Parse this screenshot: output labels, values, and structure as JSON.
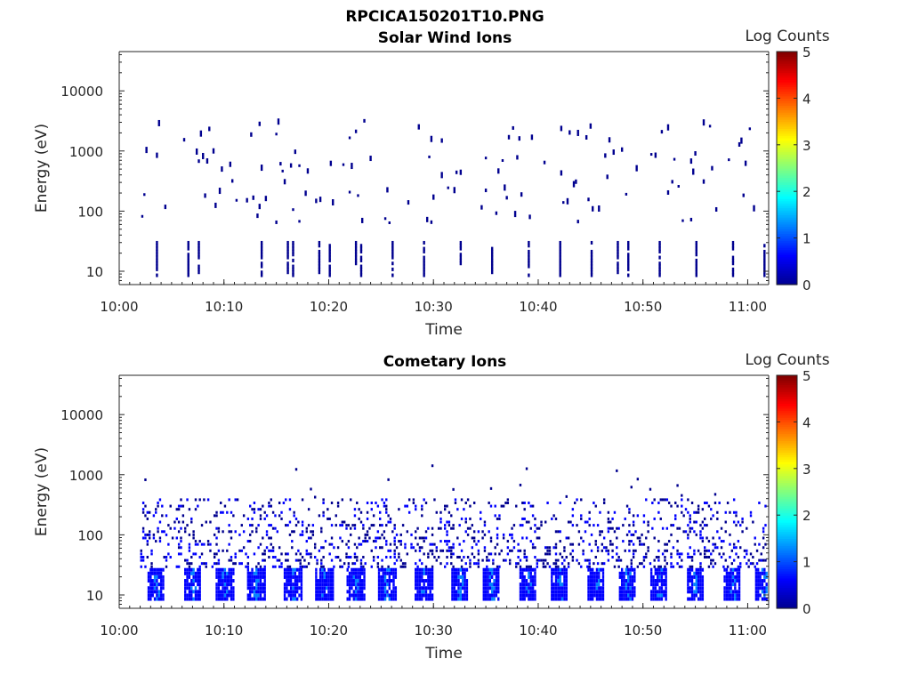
{
  "figure_title": "RPCICA150201T10.PNG",
  "colorbar_label": "Log Counts",
  "colormap": [
    "#00008f",
    "#0000ff",
    "#0080ff",
    "#00ffff",
    "#80ff80",
    "#ffff00",
    "#ff8000",
    "#ff0000",
    "#800000"
  ],
  "chart_data": [
    {
      "type": "heatmap",
      "title": "Solar Wind Ions",
      "xlabel": "Time",
      "ylabel": "Energy (eV)",
      "x_ticks": [
        "10:00",
        "10:10",
        "10:20",
        "10:30",
        "10:40",
        "10:50",
        "11:00"
      ],
      "xlim": [
        "10:00",
        "11:02"
      ],
      "y_scale": "log",
      "y_ticks": [
        "10",
        "100",
        "1000",
        "10000"
      ],
      "ylim": [
        6,
        45000
      ],
      "colorbar": {
        "label": "Log Counts",
        "range": [
          0,
          5
        ],
        "ticks": [
          "0",
          "1",
          "2",
          "3",
          "4",
          "5"
        ]
      },
      "energy_bands_eV": [
        {
          "band": "high",
          "min": 500,
          "max": 3000,
          "log_counts": 0.2
        },
        {
          "band": "mid",
          "min": 60,
          "max": 500,
          "log_counts": 0.2
        },
        {
          "band": "low",
          "min": 8,
          "max": 28,
          "log_counts": 0.3
        }
      ],
      "low_energy_burst_times": [
        "10:03.5",
        "10:06.5",
        "10:07.5",
        "10:13.5",
        "10:16",
        "10:16.5",
        "10:19",
        "10:20",
        "10:22.5",
        "10:23",
        "10:26",
        "10:29",
        "10:32.5",
        "10:35.5",
        "10:39",
        "10:42",
        "10:45",
        "10:47.5",
        "10:48.5",
        "10:51.5",
        "10:55",
        "10:58.5",
        "11:01.5"
      ]
    },
    {
      "type": "heatmap",
      "title": "Cometary Ions",
      "xlabel": "Time",
      "ylabel": "Energy (eV)",
      "x_ticks": [
        "10:00",
        "10:10",
        "10:20",
        "10:30",
        "10:40",
        "10:50",
        "11:00"
      ],
      "xlim": [
        "10:00",
        "11:02"
      ],
      "y_scale": "log",
      "y_ticks": [
        "10",
        "100",
        "1000",
        "10000"
      ],
      "ylim": [
        6,
        45000
      ],
      "colorbar": {
        "label": "Log Counts",
        "range": [
          0,
          5
        ],
        "ticks": [
          "0",
          "1",
          "2",
          "3",
          "4",
          "5"
        ]
      },
      "energy_bands_eV": [
        {
          "band": "core",
          "min": 8,
          "max": 28,
          "log_counts": 1.0
        },
        {
          "band": "spread",
          "min": 28,
          "max": 400,
          "log_counts": 0.2
        },
        {
          "band": "sparse_high",
          "min": 400,
          "max": 1400,
          "log_counts": 0.1
        }
      ],
      "burst_times": [
        "10:03.5",
        "10:07",
        "10:10",
        "10:13",
        "10:16.5",
        "10:19.5",
        "10:22.5",
        "10:25.5",
        "10:29",
        "10:32.5",
        "10:35.5",
        "10:39",
        "10:42",
        "10:45.5",
        "10:48.5",
        "10:51.5",
        "10:55",
        "10:58.5",
        "11:01.5"
      ]
    }
  ]
}
